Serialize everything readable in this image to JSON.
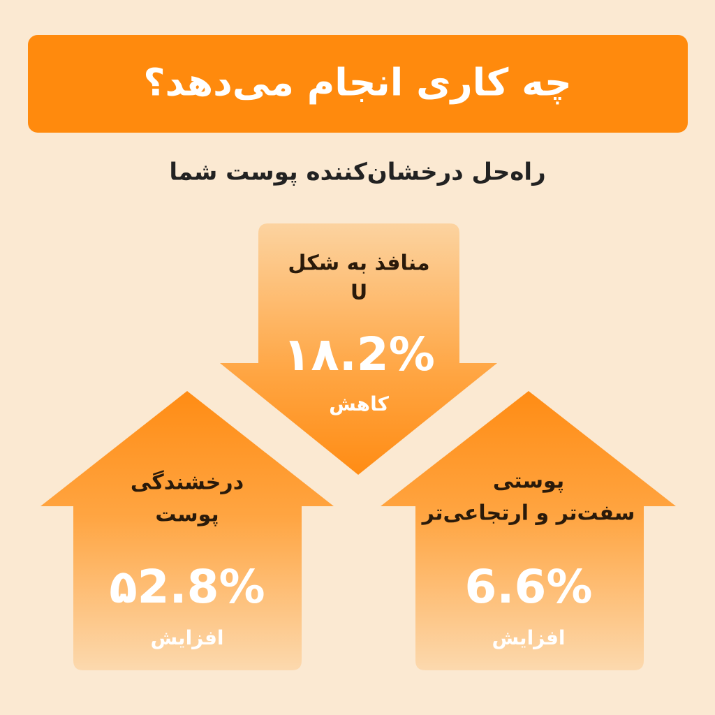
{
  "header": {
    "title": "چه کاری انجام می‌دهد؟",
    "subtitle": "راه‌حل درخشان‌کننده پوست شما"
  },
  "items": [
    {
      "label": [
        "منافذ به شکل",
        "U"
      ],
      "value": "۱۸.2%",
      "note": "کاهش"
    },
    {
      "label": [
        "درخشندگی",
        "پوست"
      ],
      "value": "۵2.8%",
      "note": "افزایش"
    },
    {
      "label": [
        "پوستی",
        "سفت‌تر و ارتجاعی‌تر"
      ],
      "value": "6.6%",
      "note": "افزایش"
    }
  ]
}
